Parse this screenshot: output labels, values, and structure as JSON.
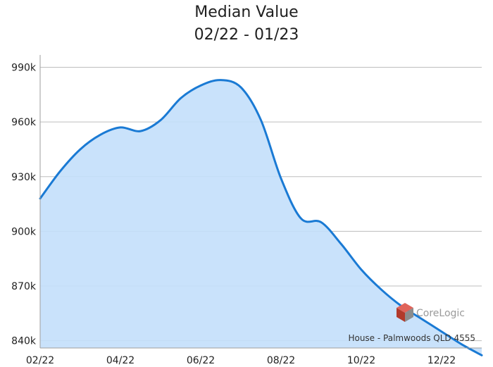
{
  "chart_data": {
    "type": "area",
    "title_lines": [
      "Median Value",
      "02/22 - 01/23"
    ],
    "xlabel": "",
    "ylabel": "",
    "x_ticks": [
      "02/22",
      "04/22",
      "06/22",
      "08/22",
      "10/22",
      "12/22"
    ],
    "y_ticks": [
      "840k",
      "870k",
      "900k",
      "930k",
      "960k",
      "990k"
    ],
    "ylim": [
      836,
      996
    ],
    "xlim": [
      0,
      11
    ],
    "grid": "horizontal",
    "x": [
      0,
      0.5,
      1,
      1.5,
      2,
      2.5,
      3,
      3.5,
      4,
      4.5,
      5,
      5.5,
      6,
      6.5,
      7,
      7.5,
      8,
      8.5,
      9,
      9.5,
      10,
      10.5,
      11
    ],
    "values": [
      918,
      933,
      945,
      953,
      957,
      955,
      961,
      973,
      980,
      983,
      979,
      961,
      929,
      907,
      905,
      893,
      879,
      868,
      859,
      852,
      845,
      838,
      832
    ],
    "value_unit": "k",
    "annotation": "House - Palmwoods QLD 4555",
    "watermark": "CoreLogic",
    "colors": {
      "line": "#1a7ad4",
      "fill": "#c3dffb",
      "grid": "#bdbdbd",
      "axis": "#9e9e9e",
      "logo_dark": "#b23a2b",
      "logo_light": "#e0645a"
    }
  }
}
